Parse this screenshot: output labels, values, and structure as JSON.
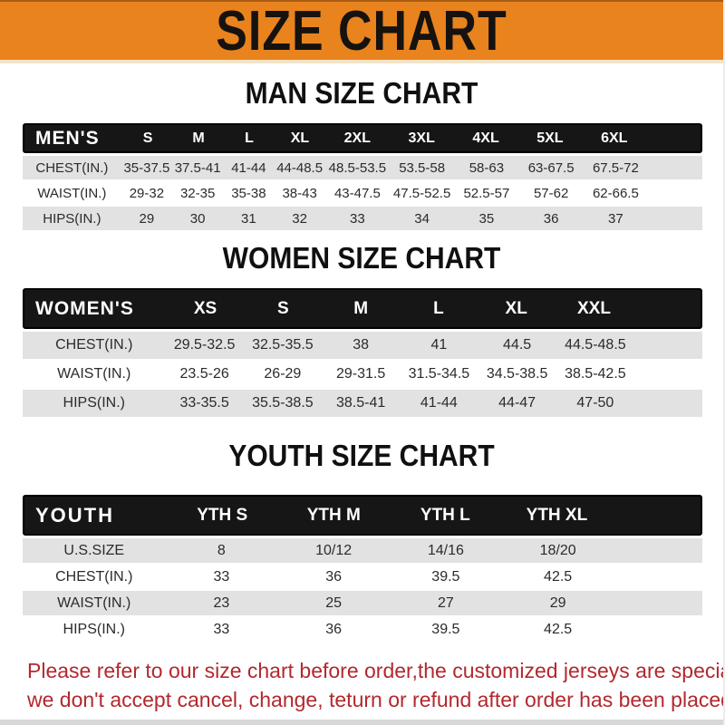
{
  "banner": {
    "title": "SIZE CHART",
    "bg_color": "#E8831E",
    "text_color": "#151210"
  },
  "colors": {
    "header_bar": "#161616",
    "row_gray": "#E2E2E3",
    "footer_red": "#B2282E"
  },
  "sections": [
    {
      "heading": "MAN SIZE CHART",
      "table": {
        "corner_label": "MEN'S",
        "columns": [
          "S",
          "M",
          "L",
          "XL",
          "2XL",
          "3XL",
          "4XL",
          "5XL",
          "6XL"
        ],
        "rows": [
          {
            "label": "CHEST(IN.)",
            "values": [
              "35-37.5",
              "37.5-41",
              "41-44",
              "44-48.5",
              "48.5-53.5",
              "53.5-58",
              "58-63",
              "63-67.5",
              "67.5-72"
            ]
          },
          {
            "label": "WAIST(IN.)",
            "values": [
              "29-32",
              "32-35",
              "35-38",
              "38-43",
              "43-47.5",
              "47.5-52.5",
              "52.5-57",
              "57-62",
              "62-66.5"
            ]
          },
          {
            "label": "HIPS(IN.)",
            "values": [
              "29",
              "30",
              "31",
              "32",
              "33",
              "34",
              "35",
              "36",
              "37"
            ]
          }
        ]
      }
    },
    {
      "heading": "WOMEN SIZE CHART",
      "table": {
        "corner_label": "WOMEN'S",
        "columns": [
          "XS",
          "S",
          "M",
          "L",
          "XL",
          "XXL"
        ],
        "rows": [
          {
            "label": "CHEST(IN.)",
            "values": [
              "29.5-32.5",
              "32.5-35.5",
              "38",
              "41",
              "44.5",
              "44.5-48.5"
            ]
          },
          {
            "label": "WAIST(IN.)",
            "values": [
              "23.5-26",
              "26-29",
              "29-31.5",
              "31.5-34.5",
              "34.5-38.5",
              "38.5-42.5"
            ]
          },
          {
            "label": "HIPS(IN.)",
            "values": [
              "33-35.5",
              "35.5-38.5",
              "38.5-41",
              "41-44",
              "44-47",
              "47-50"
            ]
          }
        ]
      }
    },
    {
      "heading": "YOUTH SIZE CHART",
      "table": {
        "corner_label": "YOUTH",
        "columns": [
          "YTH S",
          "YTH M",
          "YTH L",
          "YTH XL"
        ],
        "rows": [
          {
            "label": "U.S.SIZE",
            "values": [
              "8",
              "10/12",
              "14/16",
              "18/20"
            ]
          },
          {
            "label": "CHEST(IN.)",
            "values": [
              "33",
              "36",
              "39.5",
              "42.5"
            ]
          },
          {
            "label": "WAIST(IN.)",
            "values": [
              "23",
              "25",
              "27",
              "29"
            ]
          },
          {
            "label": "HIPS(IN.)",
            "values": [
              "33",
              "36",
              "39.5",
              "42.5"
            ]
          }
        ]
      }
    }
  ],
  "footer": {
    "lines": [
      "Please refer to our size chart before order,the customized jerseys are special products,",
      "we don't accept cancel, change, teturn or refund after order has been placed!"
    ]
  }
}
